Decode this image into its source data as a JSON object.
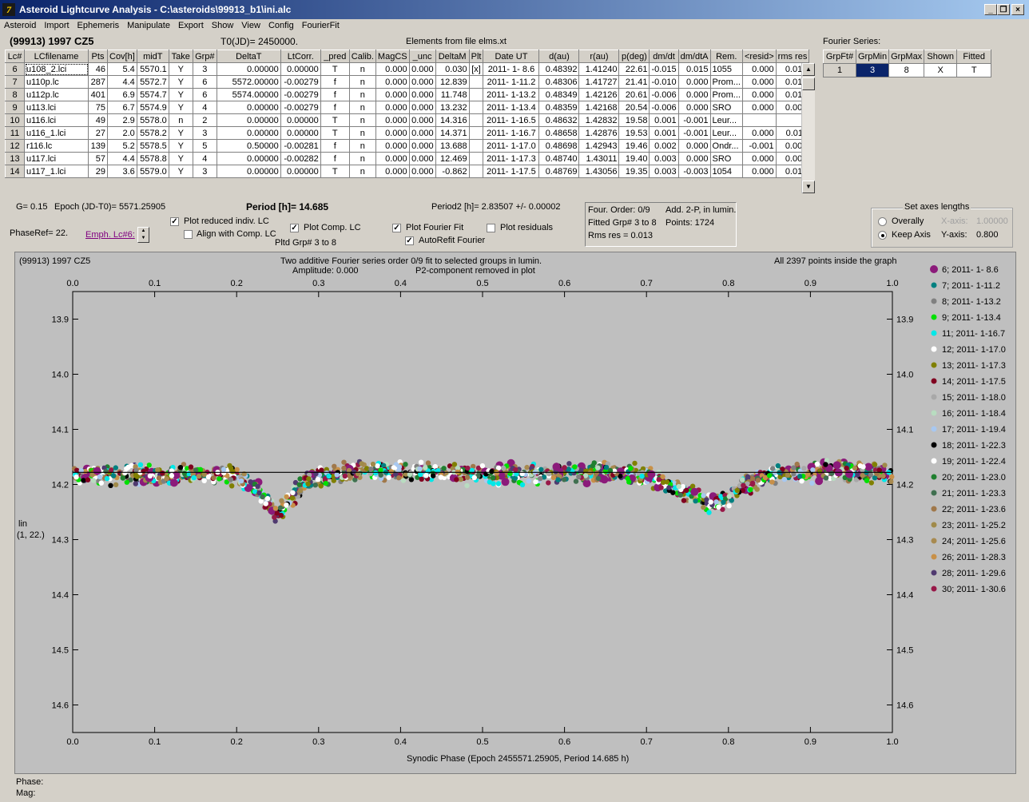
{
  "window": {
    "title": "Asteroid Lightcurve Analysis - C:\\asteroids\\99913_b1\\ini.alc",
    "minimize_label": "_",
    "maximize_label": "❐",
    "close_label": "×"
  },
  "menu": [
    "Asteroid",
    "Import",
    "Ephemeris",
    "Manipulate",
    "Export",
    "Show",
    "View",
    "Config",
    "FourierFit"
  ],
  "header": {
    "asteroid": "(99913) 1997 CZ5",
    "t0": "T0(JD)= 2450000.",
    "elements": "Elements from file elms.xt",
    "fourier_series_label": "Fourier Series:"
  },
  "table": {
    "columns": [
      "Lc#",
      "LCfilename",
      "Pts",
      "Cov[h]",
      "midT",
      "Take",
      "Grp#",
      "DeltaT",
      "LtCorr.",
      "_pred",
      "Calib.",
      "MagCS",
      "_unc",
      "DeltaM",
      "Plt",
      "Date UT",
      "d(au)",
      "r(au)",
      "p(deg)",
      "dm/dt",
      "dm/dtA",
      "Rem.",
      "<resid>",
      "rms res"
    ],
    "rows": [
      [
        "6",
        "u108_2.lci",
        "46",
        "5.4",
        "5570.1",
        "Y",
        "3",
        "0.00000",
        "0.00000",
        "T",
        "n",
        "0.000",
        "0.000",
        "0.030",
        "[x]",
        "2011- 1- 8.6",
        "0.48392",
        "1.41240",
        "22.61",
        "-0.015",
        "0.015",
        "1055",
        "0.000",
        "0.017"
      ],
      [
        "7",
        "u110p.lc",
        "287",
        "4.4",
        "5572.7",
        "Y",
        "6",
        "5572.00000",
        "-0.00279",
        "f",
        "n",
        "0.000",
        "0.000",
        "12.839",
        "",
        "2011- 1-11.2",
        "0.48306",
        "1.41727",
        "21.41",
        "-0.010",
        "0.000",
        "Prom...",
        "0.000",
        "0.014"
      ],
      [
        "8",
        "u112p.lc",
        "401",
        "6.9",
        "5574.7",
        "Y",
        "6",
        "5574.00000",
        "-0.00279",
        "f",
        "n",
        "0.000",
        "0.000",
        "11.748",
        "",
        "2011- 1-13.2",
        "0.48349",
        "1.42126",
        "20.61",
        "-0.006",
        "0.000",
        "Prom...",
        "0.000",
        "0.012"
      ],
      [
        "9",
        "u113.lci",
        "75",
        "6.7",
        "5574.9",
        "Y",
        "4",
        "0.00000",
        "-0.00279",
        "f",
        "n",
        "0.000",
        "0.000",
        "13.232",
        "",
        "2011- 1-13.4",
        "0.48359",
        "1.42168",
        "20.54",
        "-0.006",
        "0.000",
        "SRO",
        "0.000",
        "0.009"
      ],
      [
        "10",
        "u116.lci",
        "49",
        "2.9",
        "5578.0",
        "n",
        "2",
        "0.00000",
        "0.00000",
        "T",
        "n",
        "0.000",
        "0.000",
        "14.316",
        "",
        "2011- 1-16.5",
        "0.48632",
        "1.42832",
        "19.58",
        "0.001",
        "-0.001",
        "Leur...",
        "",
        ""
      ],
      [
        "11",
        "u116_1.lci",
        "27",
        "2.0",
        "5578.2",
        "Y",
        "3",
        "0.00000",
        "0.00000",
        "T",
        "n",
        "0.000",
        "0.000",
        "14.371",
        "",
        "2011- 1-16.7",
        "0.48658",
        "1.42876",
        "19.53",
        "0.001",
        "-0.001",
        "Leur...",
        "0.000",
        "0.011"
      ],
      [
        "12",
        "r116.lc",
        "139",
        "5.2",
        "5578.5",
        "Y",
        "5",
        "0.50000",
        "-0.00281",
        "f",
        "n",
        "0.000",
        "0.000",
        "13.688",
        "",
        "2011- 1-17.0",
        "0.48698",
        "1.42943",
        "19.46",
        "0.002",
        "0.000",
        "Ondr...",
        "-0.001",
        "0.007"
      ],
      [
        "13",
        "u117.lci",
        "57",
        "4.4",
        "5578.8",
        "Y",
        "4",
        "0.00000",
        "-0.00282",
        "f",
        "n",
        "0.000",
        "0.000",
        "12.469",
        "",
        "2011- 1-17.3",
        "0.48740",
        "1.43011",
        "19.40",
        "0.003",
        "0.000",
        "SRO",
        "0.000",
        "0.009"
      ],
      [
        "14",
        "u117_1.lci",
        "29",
        "3.6",
        "5579.0",
        "Y",
        "3",
        "0.00000",
        "0.00000",
        "T",
        "n",
        "0.000",
        "0.000",
        "-0.862",
        "",
        "2011- 1-17.5",
        "0.48769",
        "1.43056",
        "19.35",
        "0.003",
        "-0.003",
        "1054",
        "0.000",
        "0.014"
      ]
    ]
  },
  "fourier_table": {
    "columns": [
      "GrpFt#",
      "GrpMin",
      "GrpMax",
      "Shown",
      "Fitted"
    ],
    "row": [
      "1",
      "3",
      "8",
      "X",
      "T"
    ]
  },
  "controls": {
    "g": "G= 0.15",
    "epoch": "Epoch (JD-T0)= 5571.25905",
    "period": "Period [h]= 14.685",
    "period2": "Period2 [h]= 2.83507 +/- 0.00002",
    "phase_ref": "PhaseRef= 22.",
    "emph": "Emph. Lc#6:",
    "plot_reduced": "Plot reduced indiv. LC",
    "align_comp": "Align with Comp. LC",
    "plot_comp": "Plot Comp. LC",
    "pltd_grp": "Pltd Grp#  3  to   8",
    "plot_fourier": "Plot Fourier Fit",
    "autorefit": "AutoRefit Fourier",
    "plot_residuals": "Plot residuals",
    "info_order": "Four. Order:  0/9",
    "info_add": "Add. 2-P, in lumin.",
    "info_fitted": "Fitted Grp# 3 to 8",
    "info_points": "Points: 1724",
    "info_rms": "Rms res     = 0.013",
    "axes_title": "Set axes lengths",
    "overally": "Overally",
    "keep_axis": "Keep Axis",
    "xaxis_label": "X-axis:",
    "xaxis_value": "1.00000",
    "yaxis_label": "Y-axis:",
    "yaxis_value": "0.800"
  },
  "chart_data": {
    "type": "scatter",
    "title_left": "(99913) 1997 CZ5",
    "title_center_1": "Two additive Fourier series order 0/9 fit to selected groups in lumin.",
    "title_center_2_a": "Amplitude: 0.000",
    "title_center_2_b": "P2-component removed in plot",
    "title_right": "All 2397 points inside the graph",
    "xlabel": "Synodic Phase (Epoch 2455571.25905, Period 14.685 h)",
    "ylabel_1": "lin",
    "ylabel_2": "(1, 22.)",
    "xlim": [
      0.0,
      1.0
    ],
    "ylim": [
      14.65,
      13.85
    ],
    "x_ticks": [
      "0.0",
      "0.1",
      "0.2",
      "0.3",
      "0.4",
      "0.5",
      "0.6",
      "0.7",
      "0.8",
      "0.9",
      "1.0"
    ],
    "y_ticks": [
      "13.9",
      "14.0",
      "14.1",
      "14.2",
      "14.3",
      "14.4",
      "14.5",
      "14.6"
    ],
    "fit_line_mag": 14.178,
    "legend": [
      {
        "label": "6; 2011- 1- 8.6",
        "color": "#8b1a7a",
        "big": true
      },
      {
        "label": "7; 2011- 1-11.2",
        "color": "#008080"
      },
      {
        "label": "8; 2011- 1-13.2",
        "color": "#808080"
      },
      {
        "label": "9; 2011- 1-13.4",
        "color": "#00e000"
      },
      {
        "label": "11; 2011- 1-16.7",
        "color": "#00e8e8"
      },
      {
        "label": "12; 2011- 1-17.0",
        "color": "#ffffff"
      },
      {
        "label": "13; 2011- 1-17.3",
        "color": "#808000"
      },
      {
        "label": "14; 2011- 1-17.5",
        "color": "#800020"
      },
      {
        "label": "15; 2011- 1-18.0",
        "color": "#a8a8a8"
      },
      {
        "label": "16; 2011- 1-18.4",
        "color": "#b8dcc0"
      },
      {
        "label": "17; 2011- 1-19.4",
        "color": "#a8c8f0"
      },
      {
        "label": "18; 2011- 1-22.3",
        "color": "#000000"
      },
      {
        "label": "19; 2011- 1-22.4",
        "color": "#ffffff"
      },
      {
        "label": "20; 2011- 1-23.0",
        "color": "#208030"
      },
      {
        "label": "21; 2011- 1-23.3",
        "color": "#407050"
      },
      {
        "label": "22; 2011- 1-23.6",
        "color": "#a0784a"
      },
      {
        "label": "23; 2011- 1-25.2",
        "color": "#a08a4a"
      },
      {
        "label": "24; 2011- 1-25.6",
        "color": "#a88a50"
      },
      {
        "label": "26; 2011- 1-28.3",
        "color": "#c89048"
      },
      {
        "label": "28; 2011- 1-29.6",
        "color": "#503a70"
      },
      {
        "label": "30; 2011- 1-30.6",
        "color": "#981848"
      }
    ],
    "profile": [
      [
        0.0,
        14.185
      ],
      [
        0.05,
        14.18
      ],
      [
        0.1,
        14.183
      ],
      [
        0.15,
        14.18
      ],
      [
        0.2,
        14.185
      ],
      [
        0.22,
        14.2
      ],
      [
        0.24,
        14.24
      ],
      [
        0.25,
        14.255
      ],
      [
        0.26,
        14.235
      ],
      [
        0.28,
        14.2
      ],
      [
        0.3,
        14.185
      ],
      [
        0.35,
        14.175
      ],
      [
        0.4,
        14.178
      ],
      [
        0.45,
        14.18
      ],
      [
        0.5,
        14.18
      ],
      [
        0.55,
        14.182
      ],
      [
        0.6,
        14.18
      ],
      [
        0.65,
        14.178
      ],
      [
        0.7,
        14.185
      ],
      [
        0.72,
        14.195
      ],
      [
        0.75,
        14.215
      ],
      [
        0.78,
        14.235
      ],
      [
        0.8,
        14.225
      ],
      [
        0.82,
        14.2
      ],
      [
        0.85,
        14.185
      ],
      [
        0.9,
        14.178
      ],
      [
        0.95,
        14.175
      ],
      [
        1.0,
        14.18
      ]
    ]
  },
  "status": {
    "phase_label": "Phase:",
    "mag_label": "Mag:"
  }
}
